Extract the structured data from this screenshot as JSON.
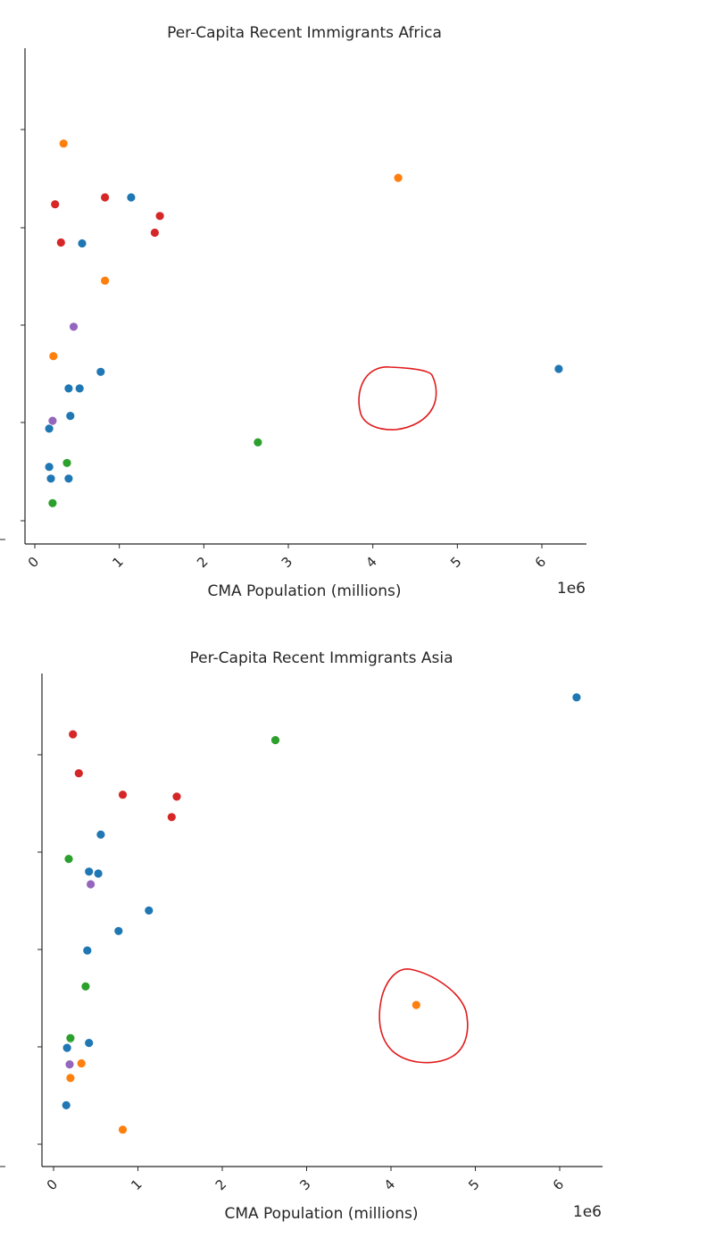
{
  "chart_data": [
    {
      "type": "scatter",
      "title": "Per-Capita Recent Immigrants Africa",
      "xlabel": "CMA Population (millions)",
      "ylabel": "",
      "x_offset_label": "1e6",
      "xlim": [
        -0.2,
        6.5
      ],
      "x_ticks": [
        "0",
        "1",
        "2",
        "3",
        "4",
        "5",
        "6"
      ],
      "grid": false,
      "legend": "none",
      "series": [
        {
          "color": "#1f77b4",
          "points": [
            [
              0.17,
              0.55
            ],
            [
              0.19,
              0.43
            ],
            [
              0.4,
              0.43
            ],
            [
              0.17,
              0.94
            ],
            [
              0.42,
              1.07
            ],
            [
              0.4,
              1.35
            ],
            [
              0.53,
              1.35
            ],
            [
              0.78,
              1.52
            ],
            [
              0.56,
              2.83
            ],
            [
              1.14,
              3.3
            ],
            [
              6.2,
              1.55
            ]
          ]
        },
        {
          "color": "#ff7f0e",
          "points": [
            [
              0.22,
              1.68
            ],
            [
              0.34,
              3.85
            ],
            [
              0.83,
              2.45
            ],
            [
              4.3,
              3.5
            ]
          ]
        },
        {
          "color": "#2ca02c",
          "points": [
            [
              0.21,
              0.18
            ],
            [
              0.38,
              0.59
            ],
            [
              2.64,
              0.8
            ]
          ]
        },
        {
          "color": "#d62728",
          "points": [
            [
              0.24,
              3.23
            ],
            [
              0.31,
              2.84
            ],
            [
              0.83,
              3.3
            ],
            [
              1.42,
              2.94
            ],
            [
              1.48,
              3.11
            ]
          ]
        },
        {
          "color": "#9467bd",
          "points": [
            [
              0.21,
              1.02
            ],
            [
              0.46,
              1.98
            ]
          ]
        }
      ],
      "annotation": {
        "type": "hand-drawn circle",
        "color": "#e01b1b",
        "target": [
          4.3,
          3.5
        ]
      }
    },
    {
      "type": "scatter",
      "title": "Per-Capita Recent Immigrants Asia",
      "xlabel": "CMA Population (millions)",
      "ylabel": "",
      "x_offset_label": "1e6",
      "xlim": [
        -0.15,
        6.5
      ],
      "x_ticks": [
        "0",
        "1",
        "2",
        "3",
        "4",
        "5",
        "6"
      ],
      "grid": false,
      "legend": "none",
      "series": [
        {
          "color": "#1f77b4",
          "points": [
            [
              0.15,
              0.4
            ],
            [
              0.16,
              0.99
            ],
            [
              0.2,
              1.08
            ],
            [
              0.42,
              1.04
            ],
            [
              0.4,
              1.99
            ],
            [
              0.42,
              2.8
            ],
            [
              0.53,
              2.78
            ],
            [
              0.56,
              3.18
            ],
            [
              0.77,
              2.19
            ],
            [
              1.13,
              2.4
            ],
            [
              6.2,
              4.59
            ]
          ]
        },
        {
          "color": "#ff7f0e",
          "points": [
            [
              0.2,
              0.68
            ],
            [
              0.33,
              0.83
            ],
            [
              0.82,
              0.15
            ],
            [
              4.3,
              1.43
            ]
          ]
        },
        {
          "color": "#2ca02c",
          "points": [
            [
              0.18,
              2.93
            ],
            [
              0.2,
              1.09
            ],
            [
              0.38,
              1.62
            ],
            [
              2.63,
              4.15
            ]
          ]
        },
        {
          "color": "#d62728",
          "points": [
            [
              0.23,
              4.21
            ],
            [
              0.3,
              3.81
            ],
            [
              0.82,
              3.59
            ],
            [
              1.4,
              3.36
            ],
            [
              1.46,
              3.57
            ]
          ]
        },
        {
          "color": "#9467bd",
          "points": [
            [
              0.19,
              0.82
            ],
            [
              0.44,
              2.67
            ]
          ]
        }
      ],
      "annotation": {
        "type": "hand-drawn circle",
        "color": "#e01b1b",
        "target": [
          4.3,
          1.43
        ]
      }
    }
  ]
}
